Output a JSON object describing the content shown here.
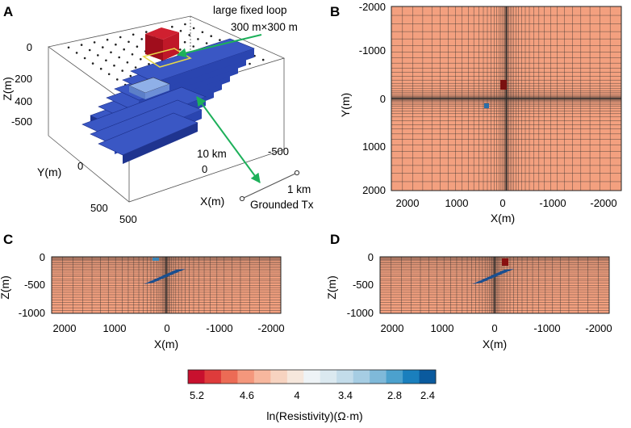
{
  "panels": {
    "A": {
      "label": "A",
      "loop_label_line1": "large fixed loop",
      "loop_label_line2": "300 m×300 m",
      "dist_label": "10 km",
      "tx_dist_label": "1 km",
      "tx_label": "Grounded Tx",
      "z_axis_label": "Z(m)",
      "y_axis_label": "Y(m)",
      "x_axis_label": "X(m)",
      "z_ticks": [
        "0",
        "200",
        "400",
        "-500"
      ],
      "y_ticks": [
        "0",
        "500"
      ],
      "x_ticks": [
        "500",
        "0",
        "-500"
      ]
    },
    "B": {
      "label": "B",
      "xlabel": "X(m)",
      "ylabel": "Y(m)",
      "x_ticks": [
        "2000",
        "1000",
        "0",
        "-1000",
        "-2000"
      ],
      "y_ticks": [
        "-2000",
        "-1000",
        "0",
        "1000",
        "2000"
      ]
    },
    "C": {
      "label": "C",
      "xlabel": "X(m)",
      "ylabel": "Z(m)",
      "x_ticks": [
        "2000",
        "1000",
        "0",
        "-1000",
        "-2000"
      ],
      "y_ticks": [
        "0",
        "-500",
        "-1000"
      ]
    },
    "D": {
      "label": "D",
      "xlabel": "X(m)",
      "ylabel": "Z(m)",
      "x_ticks": [
        "2000",
        "1000",
        "0",
        "-1000",
        "-2000"
      ],
      "y_ticks": [
        "0",
        "-500",
        "-1000"
      ]
    }
  },
  "colorbar": {
    "title": "ln(Resistivity)(Ω·m)",
    "tick_labels": [
      "5.2",
      "4.6",
      "4",
      "3.4",
      "2.8",
      "2.4"
    ],
    "colors": [
      "#c8102e",
      "#de3b3b",
      "#ec6b55",
      "#f4977c",
      "#f7b79e",
      "#f7d3c0",
      "#f6e7dc",
      "#eef3f6",
      "#dbe9f0",
      "#c3dcea",
      "#a6cde3",
      "#7fb9d9",
      "#4ca1cd",
      "#1a7fbd",
      "#0a5a9e"
    ]
  },
  "colors": {
    "background_medium": "#f3a07f",
    "grid_line": "#2b2b2b",
    "conductor_blue": "#243d9c",
    "resistor_red": "#b01020",
    "arrow_green": "#1db05a",
    "loop_yellow": "#e6d84a"
  }
}
